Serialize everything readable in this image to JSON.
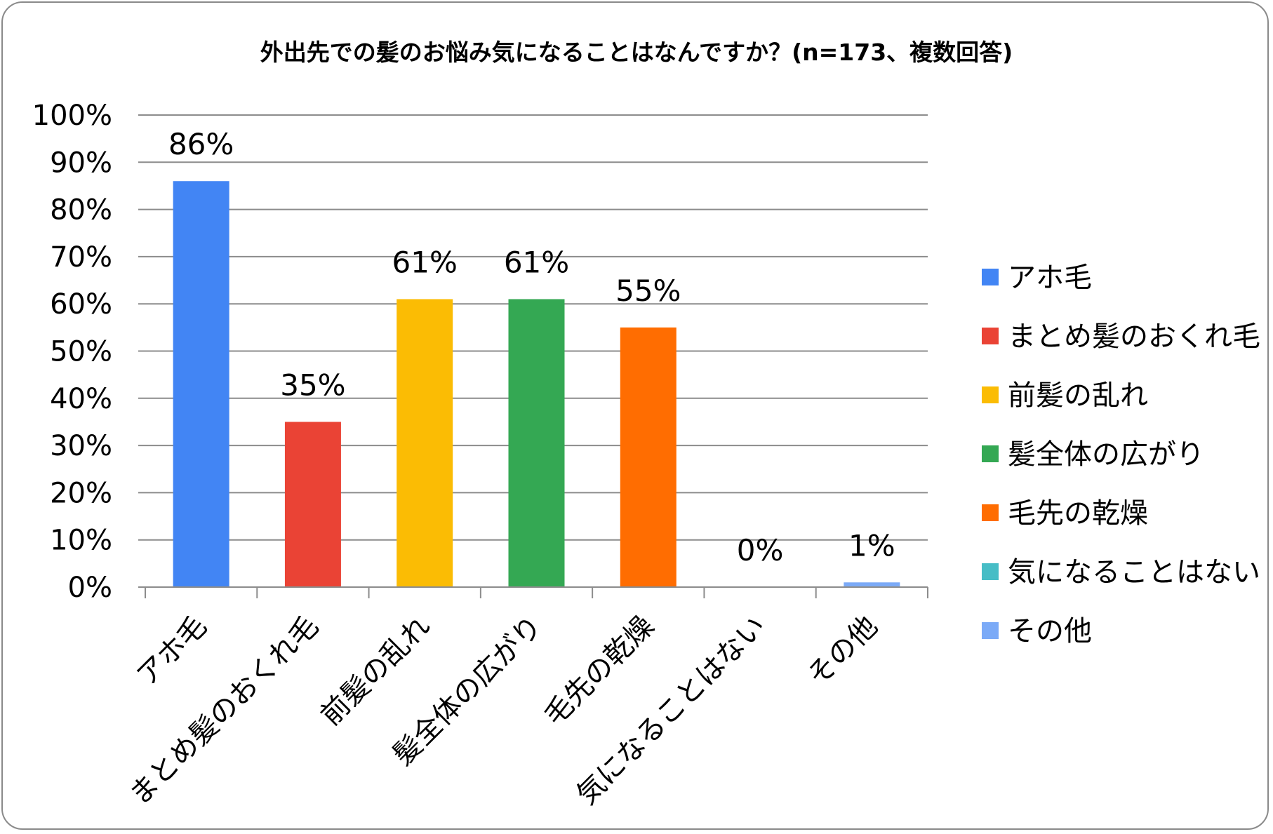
{
  "chart_data": {
    "type": "bar",
    "title": "外出先での髪のお悩み気になることはなんですか？(n=173、複数回答)",
    "xlabel": "",
    "ylabel": "",
    "ylim": [
      0,
      100
    ],
    "y_ticks": [
      "0%",
      "10%",
      "20%",
      "30%",
      "40%",
      "50%",
      "60%",
      "70%",
      "80%",
      "90%",
      "100%"
    ],
    "grid": true,
    "legend_position": "right",
    "categories": [
      "アホ毛",
      "まとめ髪のおくれ毛",
      "前髪の乱れ",
      "髪全体の広がり",
      "毛先の乾燥",
      "気になることはない",
      "その他"
    ],
    "values": [
      86,
      35,
      61,
      61,
      55,
      0,
      1
    ],
    "data_labels": [
      "86%",
      "35%",
      "61%",
      "61%",
      "55%",
      "0%",
      "1%"
    ],
    "colors": [
      "#4285f4",
      "#ea4335",
      "#fbbc04",
      "#34a853",
      "#ff6d01",
      "#46bdc6",
      "#7baaf7"
    ]
  }
}
